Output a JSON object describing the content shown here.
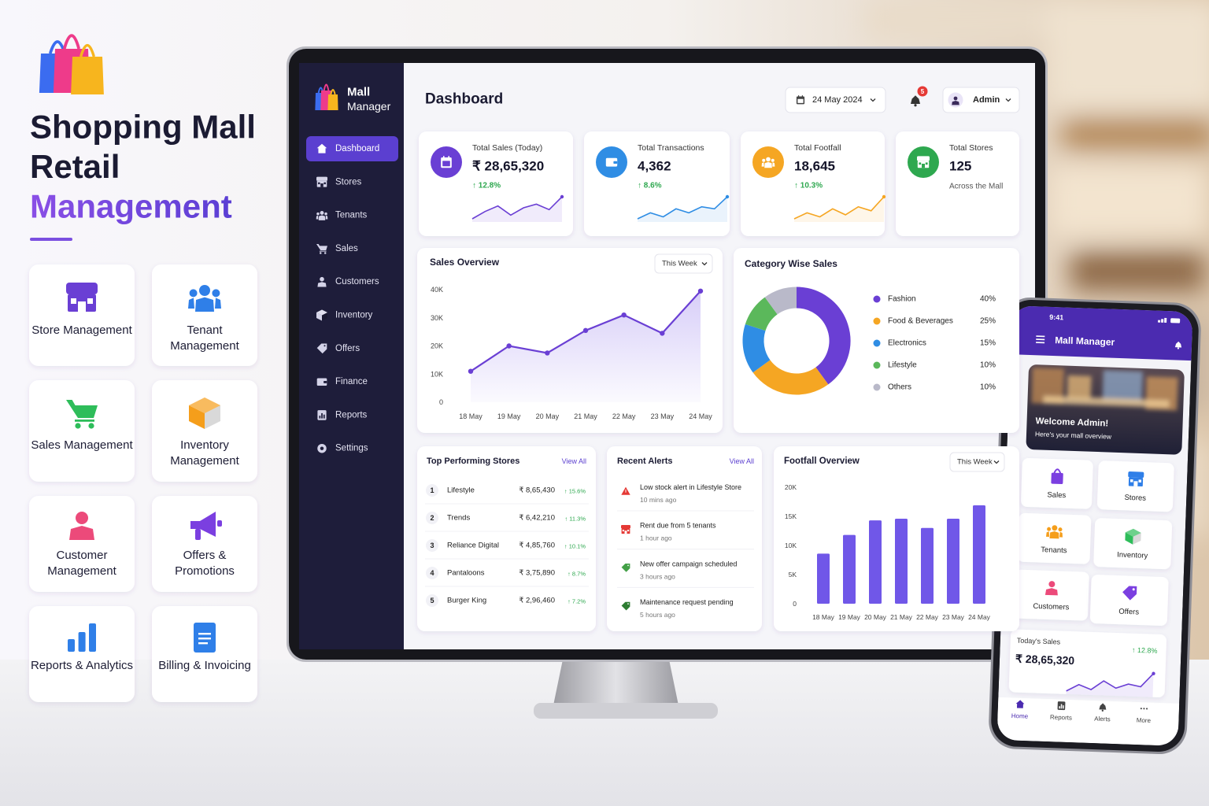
{
  "hero": {
    "title_lines": [
      "Shopping Mall",
      "Retail",
      "Management"
    ]
  },
  "features": [
    "Store Management",
    "Tenant Management",
    "Sales Management",
    "Inventory Management",
    "Customer Management",
    "Offers & Promotions",
    "Reports & Analytics",
    "Billing & Invoicing"
  ],
  "dashboard": {
    "brand": [
      "Mall",
      "Manager"
    ],
    "nav": [
      "Dashboard",
      "Stores",
      "Tenants",
      "Sales",
      "Customers",
      "Inventory",
      "Offers",
      "Finance",
      "Reports",
      "Settings"
    ],
    "title": "Dashboard",
    "date": "24 May 2024",
    "notifications": 5,
    "user": "Admin",
    "kpis": [
      {
        "label": "Total Sales (Today)",
        "value": "₹ 28,65,320",
        "change": "↑ 12.8%",
        "color": "#6a3fd4",
        "trend": [
          2,
          6,
          9,
          4,
          8,
          10,
          7,
          14
        ]
      },
      {
        "label": "Total Transactions",
        "value": "4,362",
        "change": "↑ 8.6%",
        "color": "#2f8de4",
        "trend": [
          3,
          6,
          4,
          8,
          6,
          9,
          8,
          14
        ]
      },
      {
        "label": "Total Footfall",
        "value": "18,645",
        "change": "↑ 10.3%",
        "color": "#f5a623",
        "trend": [
          2,
          5,
          3,
          7,
          4,
          8,
          6,
          13
        ]
      },
      {
        "label": "Total Stores",
        "value": "125",
        "note": "Across the Mall",
        "color": "#2ea84f"
      }
    ],
    "top_stores": {
      "title": "Top Performing Stores",
      "link": "View All",
      "rows": [
        [
          1,
          "Lifestyle",
          "₹ 8,65,430",
          "↑ 15.6%"
        ],
        [
          2,
          "Trends",
          "₹ 6,42,210",
          "↑ 11.3%"
        ],
        [
          3,
          "Reliance Digital",
          "₹ 4,85,760",
          "↑ 10.1%"
        ],
        [
          4,
          "Pantaloons",
          "₹ 3,75,890",
          "↑ 8.7%"
        ],
        [
          5,
          "Burger King",
          "₹ 2,96,460",
          "↑ 7.2%"
        ]
      ]
    },
    "alerts": {
      "title": "Recent Alerts",
      "link": "View All",
      "items": [
        {
          "text": "Low stock alert in Lifestyle Store",
          "time": "10 mins ago"
        },
        {
          "text": "Rent due from 5 tenants",
          "time": "1 hour ago"
        },
        {
          "text": "New offer campaign scheduled",
          "time": "3 hours ago"
        },
        {
          "text": "Maintenance request pending",
          "time": "5 hours ago"
        }
      ]
    }
  },
  "chart_data": [
    {
      "type": "line",
      "title": "Sales Overview",
      "filter": "This Week",
      "color": "#6a3fd4",
      "categories": [
        "18 May",
        "19 May",
        "20 May",
        "21 May",
        "22 May",
        "23 May",
        "24 May"
      ],
      "values": [
        11000,
        20000,
        17500,
        25500,
        31000,
        24500,
        39500
      ],
      "ylim": [
        0,
        40000
      ],
      "yticks": [
        0,
        {
          "value": 10000,
          "label": "10K"
        },
        {
          "value": 20000,
          "label": "20K"
        },
        {
          "value": 30000,
          "label": "30K"
        },
        {
          "value": 40000,
          "label": "40K"
        }
      ]
    },
    {
      "type": "pie",
      "title": "Category Wise Sales",
      "categories": [
        "Fashion",
        "Food & Beverages",
        "Electronics",
        "Lifestyle",
        "Others"
      ],
      "values": [
        40,
        25,
        15,
        10,
        10
      ],
      "value_labels": [
        "40%",
        "25%",
        "15%",
        "10%",
        "10%"
      ],
      "colors": [
        "#6a3fd4",
        "#f5a623",
        "#2f8de4",
        "#5bb85b",
        "#b9b9c9"
      ]
    },
    {
      "type": "bar",
      "title": "Footfall Overview",
      "filter": "This Week",
      "color": "#7057e8",
      "categories": [
        "18 May",
        "19 May",
        "20 May",
        "21 May",
        "22 May",
        "23 May",
        "24 May"
      ],
      "values": [
        8600,
        11800,
        14300,
        14600,
        13000,
        14600,
        16900
      ],
      "ylim": [
        0,
        20000
      ],
      "yticks": [
        0,
        {
          "value": 5000,
          "label": "5K"
        },
        {
          "value": 10000,
          "label": "10K"
        },
        {
          "value": 15000,
          "label": "15K"
        },
        {
          "value": 20000,
          "label": "20K"
        }
      ]
    }
  ],
  "phone": {
    "time": "9:41",
    "title": "Mall Manager",
    "welcome": "Welcome Admin!",
    "subtitle": "Here's your mall overview",
    "tiles": [
      "Sales",
      "Stores",
      "Tenants",
      "Inventory",
      "Customers",
      "Offers"
    ],
    "sales_label": "Today's Sales",
    "sales_value": "₹ 28,65,320",
    "sales_change": "↑ 12.8%",
    "trend": [
      3,
      6,
      4,
      8,
      5,
      7,
      6,
      12
    ],
    "tabs": [
      "Home",
      "Reports",
      "Alerts",
      "More"
    ]
  }
}
